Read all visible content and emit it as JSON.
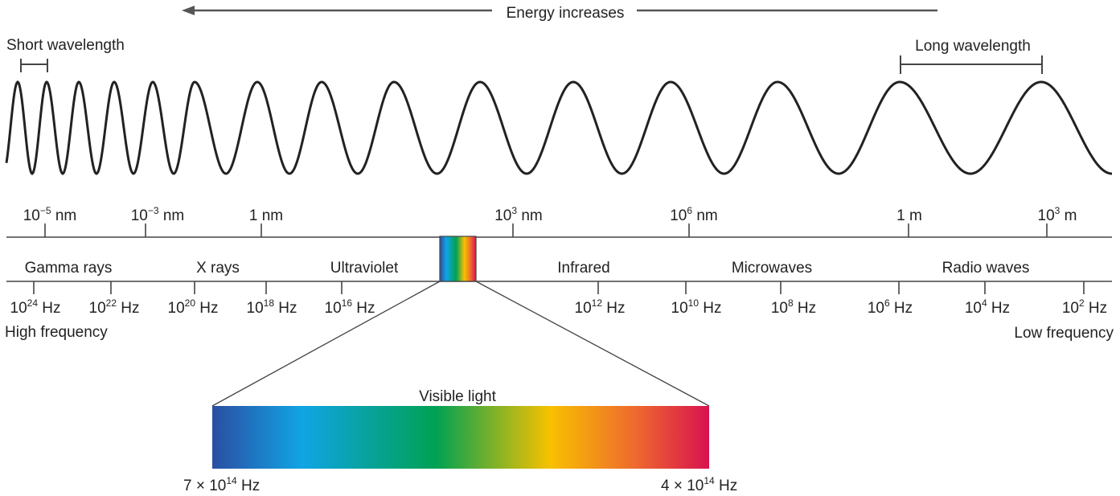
{
  "title": "Energy increases",
  "wave_labels": {
    "short": "Short wavelength",
    "long": "Long wavelength"
  },
  "wavelength_ticks": [
    {
      "base": "10",
      "exp": "−5",
      "unit": " nm"
    },
    {
      "base": "10",
      "exp": "−3",
      "unit": " nm"
    },
    {
      "base": "1 nm",
      "exp": "",
      "unit": ""
    },
    {
      "base": "10",
      "exp": "3",
      "unit": " nm"
    },
    {
      "base": "10",
      "exp": "6",
      "unit": "  nm"
    },
    {
      "base": "1 m",
      "exp": "",
      "unit": ""
    },
    {
      "base": "10",
      "exp": "3",
      "unit": " m"
    }
  ],
  "regions": [
    "Gamma rays",
    "X rays",
    "Ultraviolet",
    "Infrared",
    "Microwaves",
    "Radio waves"
  ],
  "frequency_ticks": [
    {
      "base": "10",
      "exp": "24",
      "unit": " Hz"
    },
    {
      "base": "10",
      "exp": "22",
      "unit": " Hz"
    },
    {
      "base": "10",
      "exp": "20",
      "unit": " Hz"
    },
    {
      "base": "10",
      "exp": "18",
      "unit": " Hz"
    },
    {
      "base": "10",
      "exp": "16",
      "unit": " Hz"
    },
    {
      "base": "10",
      "exp": "12",
      "unit": " Hz"
    },
    {
      "base": "10",
      "exp": "10",
      "unit": " Hz"
    },
    {
      "base": "10",
      "exp": "8",
      "unit": " Hz"
    },
    {
      "base": "10",
      "exp": "6",
      "unit": " Hz"
    },
    {
      "base": "10",
      "exp": "4",
      "unit": " Hz"
    },
    {
      "base": "10",
      "exp": "2",
      "unit": " Hz"
    }
  ],
  "frequency_ends": {
    "high": "High frequency",
    "low": "Low frequency"
  },
  "visible": {
    "label": "Visible light",
    "left_base": "7 × 10",
    "left_exp": "14",
    "left_unit": " Hz",
    "right_base": "4 × 10",
    "right_exp": "14",
    "right_unit": " Hz",
    "gradient_colors": [
      "#2b4ea3",
      "#10a4e4",
      "#00a153",
      "#f8c100",
      "#ee6a2e",
      "#d8124f"
    ]
  },
  "line_color": "#444444",
  "wave_color": "#222222"
}
